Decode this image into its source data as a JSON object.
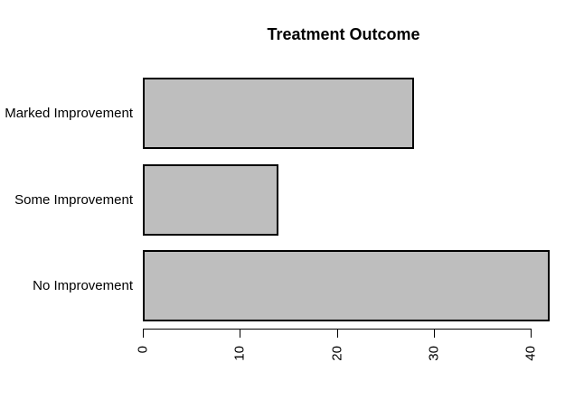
{
  "chart_data": {
    "type": "bar",
    "orientation": "horizontal",
    "title": "Treatment Outcome",
    "categories": [
      "Marked Improvement",
      "Some Improvement",
      "No Improvement"
    ],
    "values": [
      28,
      14,
      42
    ],
    "xlabel": "",
    "ylabel": "",
    "xlim": [
      0,
      42
    ],
    "x_ticks": [
      0,
      10,
      20,
      30,
      40
    ],
    "x_tick_labels": [
      "0",
      "10",
      "20",
      "30",
      "40"
    ],
    "x_tick_label_rotation_deg": 90,
    "grid": false,
    "legend": false,
    "bar_fill": "#BEBEBE",
    "bar_border": "#000000",
    "axis_color": "#000000",
    "text_color": "#000000",
    "background": "#FFFFFF"
  }
}
